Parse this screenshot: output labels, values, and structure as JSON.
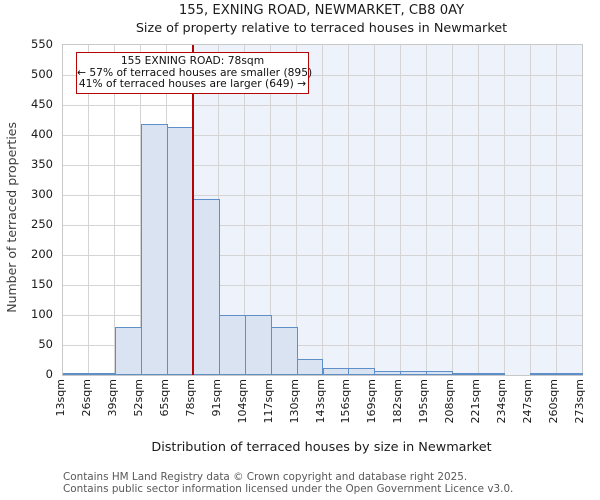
{
  "chart_data": {
    "type": "bar",
    "title": "155, EXNING ROAD, NEWMARKET, CB8 0AY",
    "subtitle": "Size of property relative to terraced houses in Newmarket",
    "xlabel": "Distribution of terraced houses by size in Newmarket",
    "ylabel": "Number of terraced properties",
    "x_tick_labels": [
      "13sqm",
      "26sqm",
      "39sqm",
      "52sqm",
      "65sqm",
      "78sqm",
      "91sqm",
      "104sqm",
      "117sqm",
      "130sqm",
      "143sqm",
      "156sqm",
      "169sqm",
      "182sqm",
      "195sqm",
      "208sqm",
      "221sqm",
      "234sqm",
      "247sqm",
      "260sqm",
      "273sqm"
    ],
    "bin_start": 13,
    "bin_width": 13,
    "values": [
      2,
      2,
      80,
      418,
      414,
      293,
      100,
      100,
      80,
      27,
      12,
      12,
      6,
      6,
      6,
      1,
      1,
      0,
      1,
      1
    ],
    "y_ticks": [
      0,
      50,
      100,
      150,
      200,
      250,
      300,
      350,
      400,
      450,
      500,
      550
    ],
    "ylim": [
      0,
      550
    ],
    "grid": true,
    "legend": false,
    "marker_value": 78,
    "annotation": {
      "line1": "155 EXNING ROAD: 78sqm",
      "line2": "← 57% of terraced houses are smaller (895)",
      "line3": "41% of terraced houses are larger (649) →"
    },
    "colors": {
      "bar_fill": "#d9e3f2",
      "bar_edge": "#5e8fc9",
      "marker_red": "#b30505",
      "shade_fill": "#eef2fa",
      "grid_gray": "#d4d4d4"
    }
  },
  "footer": {
    "line1": "Contains HM Land Registry data © Crown copyright and database right 2025.",
    "line2": "Contains public sector information licensed under the Open Government Licence v3.0."
  }
}
